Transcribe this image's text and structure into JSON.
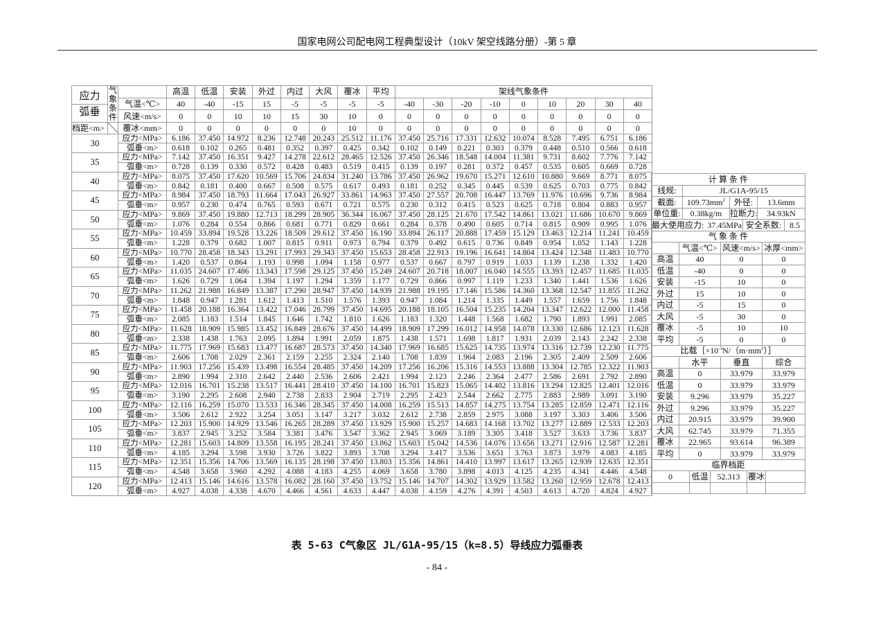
{
  "header": {
    "title": "国家电网公司配电网工程典型设计（10kV 架空线路分册）-第 5 章"
  },
  "caption": "表 5-63 C气象区 JL/G1A-95/15（k=8.5）导线应力弧垂表",
  "page_number": "- 84 -",
  "main_table": {
    "corner": {
      "stress_label": "应力",
      "sag_label": "弧垂",
      "meteo_label": "气象条件",
      "span_label": "档距<m>"
    },
    "row_labels": {
      "temp": "气温<℃>",
      "wind": "风速<m/s>",
      "ice": "覆冰<mm>",
      "stress": "应力<MPa>",
      "sag": "弧垂<m>"
    },
    "conditions": [
      "高温",
      "低温",
      "安装",
      "外过",
      "内过",
      "大风",
      "覆冰",
      "平均"
    ],
    "erection_title": "架线气象条件",
    "temps": [
      "40",
      "-40",
      "-15",
      "15",
      "-5",
      "-5",
      "-5",
      "-5",
      "-40",
      "-30",
      "-20",
      "-10",
      "0",
      "10",
      "20",
      "30",
      "40"
    ],
    "winds": [
      "0",
      "0",
      "10",
      "10",
      "15",
      "30",
      "10",
      "0",
      "0",
      "0",
      "0",
      "0",
      "0",
      "0",
      "0",
      "0",
      "0"
    ],
    "ices": [
      "0",
      "0",
      "0",
      "0",
      "0",
      "0",
      "10",
      "0",
      "0",
      "0",
      "0",
      "0",
      "0",
      "0",
      "0",
      "0",
      "0"
    ],
    "spans": [
      {
        "span": "30",
        "stress": [
          "6.186",
          "37.450",
          "14.972",
          "8.236",
          "12.748",
          "20.243",
          "25.512",
          "11.176",
          "37.450",
          "25.716",
          "17.331",
          "12.632",
          "10.074",
          "8.528",
          "7.495",
          "6.751",
          "6.186"
        ],
        "sag": [
          "0.618",
          "0.102",
          "0.265",
          "0.481",
          "0.352",
          "0.397",
          "0.425",
          "0.342",
          "0.102",
          "0.149",
          "0.221",
          "0.303",
          "0.379",
          "0.448",
          "0.510",
          "0.566",
          "0.618"
        ]
      },
      {
        "span": "35",
        "stress": [
          "7.142",
          "37.450",
          "16.351",
          "9.427",
          "14.278",
          "22.612",
          "28.465",
          "12.526",
          "37.450",
          "26.346",
          "18.548",
          "14.004",
          "11.381",
          "9.731",
          "8.602",
          "7.776",
          "7.142"
        ],
        "sag": [
          "0.728",
          "0.139",
          "0.330",
          "0.572",
          "0.428",
          "0.483",
          "0.519",
          "0.415",
          "0.139",
          "0.197",
          "0.281",
          "0.372",
          "0.457",
          "0.535",
          "0.605",
          "0.669",
          "0.728"
        ]
      },
      {
        "span": "40",
        "stress": [
          "8.075",
          "37.450",
          "17.620",
          "10.569",
          "15.706",
          "24.834",
          "31.240",
          "13.786",
          "37.450",
          "26.962",
          "19.670",
          "15.271",
          "12.610",
          "10.880",
          "9.669",
          "8.771",
          "8.075"
        ],
        "sag": [
          "0.842",
          "0.181",
          "0.400",
          "0.667",
          "0.508",
          "0.575",
          "0.617",
          "0.493",
          "0.181",
          "0.252",
          "0.345",
          "0.445",
          "0.539",
          "0.625",
          "0.703",
          "0.775",
          "0.842"
        ]
      },
      {
        "span": "45",
        "stress": [
          "8.984",
          "37.450",
          "18.793",
          "11.664",
          "17.043",
          "26.927",
          "33.861",
          "14.963",
          "37.450",
          "27.557",
          "20.708",
          "16.447",
          "13.769",
          "11.976",
          "10.696",
          "9.736",
          "8.984"
        ],
        "sag": [
          "0.957",
          "0.230",
          "0.474",
          "0.765",
          "0.593",
          "0.671",
          "0.721",
          "0.575",
          "0.230",
          "0.312",
          "0.415",
          "0.523",
          "0.625",
          "0.718",
          "0.804",
          "0.883",
          "0.957"
        ]
      },
      {
        "span": "50",
        "stress": [
          "9.869",
          "37.450",
          "19.880",
          "12.713",
          "18.299",
          "28.905",
          "36.344",
          "16.067",
          "37.450",
          "28.125",
          "21.670",
          "17.542",
          "14.861",
          "13.021",
          "11.686",
          "10.670",
          "9.869"
        ],
        "sag": [
          "1.076",
          "0.284",
          "0.554",
          "0.866",
          "0.681",
          "0.771",
          "0.829",
          "0.661",
          "0.284",
          "0.378",
          "0.490",
          "0.605",
          "0.714",
          "0.815",
          "0.909",
          "0.995",
          "1.076"
        ]
      },
      {
        "span": "55",
        "stress": [
          "10.459",
          "33.894",
          "19.528",
          "13.226",
          "18.509",
          "29.612",
          "37.450",
          "16.190",
          "33.894",
          "26.117",
          "20.888",
          "17.459",
          "15.129",
          "13.463",
          "12.214",
          "11.241",
          "10.459"
        ],
        "sag": [
          "1.228",
          "0.379",
          "0.682",
          "1.007",
          "0.815",
          "0.911",
          "0.973",
          "0.794",
          "0.379",
          "0.492",
          "0.615",
          "0.736",
          "0.849",
          "0.954",
          "1.052",
          "1.143",
          "1.228"
        ]
      },
      {
        "span": "60",
        "stress": [
          "10.770",
          "28.458",
          "18.343",
          "13.291",
          "17.993",
          "29.343",
          "37.450",
          "15.653",
          "28.458",
          "22.913",
          "19.196",
          "16.641",
          "14.804",
          "13.424",
          "12.348",
          "11.483",
          "10.770"
        ],
        "sag": [
          "1.420",
          "0.537",
          "0.864",
          "1.193",
          "0.998",
          "1.094",
          "1.158",
          "0.977",
          "0.537",
          "0.667",
          "0.797",
          "0.919",
          "1.033",
          "1.139",
          "1.238",
          "1.332",
          "1.420"
        ]
      },
      {
        "span": "65",
        "stress": [
          "11.035",
          "24.607",
          "17.486",
          "13.343",
          "17.598",
          "29.125",
          "37.450",
          "15.249",
          "24.607",
          "20.718",
          "18.007",
          "16.040",
          "14.555",
          "13.393",
          "12.457",
          "11.685",
          "11.035"
        ],
        "sag": [
          "1.626",
          "0.729",
          "1.064",
          "1.394",
          "1.197",
          "1.294",
          "1.359",
          "1.177",
          "0.729",
          "0.866",
          "0.997",
          "1.119",
          "1.233",
          "1.340",
          "1.441",
          "1.536",
          "1.626"
        ]
      },
      {
        "span": "70",
        "stress": [
          "11.262",
          "21.988",
          "16.849",
          "13.387",
          "17.290",
          "28.947",
          "37.450",
          "14.939",
          "21.988",
          "19.195",
          "17.146",
          "15.586",
          "14.360",
          "13.368",
          "12.547",
          "11.855",
          "11.262"
        ],
        "sag": [
          "1.848",
          "0.947",
          "1.281",
          "1.612",
          "1.413",
          "1.510",
          "1.576",
          "1.393",
          "0.947",
          "1.084",
          "1.214",
          "1.335",
          "1.449",
          "1.557",
          "1.659",
          "1.756",
          "1.848"
        ]
      },
      {
        "span": "75",
        "stress": [
          "11.458",
          "20.188",
          "16.364",
          "13.422",
          "17.046",
          "28.799",
          "37.450",
          "14.695",
          "20.188",
          "18.105",
          "16.504",
          "15.235",
          "14.204",
          "13.347",
          "12.622",
          "12.000",
          "11.458"
        ],
        "sag": [
          "2.085",
          "1.183",
          "1.514",
          "1.845",
          "1.646",
          "1.742",
          "1.810",
          "1.626",
          "1.183",
          "1.320",
          "1.448",
          "1.568",
          "1.682",
          "1.790",
          "1.893",
          "1.991",
          "2.085"
        ]
      },
      {
        "span": "80",
        "stress": [
          "11.628",
          "18.909",
          "15.985",
          "13.452",
          "16.849",
          "28.676",
          "37.450",
          "14.499",
          "18.909",
          "17.299",
          "16.012",
          "14.958",
          "14.078",
          "13.330",
          "12.686",
          "12.123",
          "11.628"
        ],
        "sag": [
          "2.338",
          "1.438",
          "1.763",
          "2.095",
          "1.894",
          "1.991",
          "2.059",
          "1.875",
          "1.438",
          "1.571",
          "1.698",
          "1.817",
          "1.931",
          "2.039",
          "2.143",
          "2.242",
          "2.338"
        ]
      },
      {
        "span": "85",
        "stress": [
          "11.775",
          "17.969",
          "15.683",
          "13.477",
          "16.687",
          "28.573",
          "37.450",
          "14.340",
          "17.969",
          "16.685",
          "15.625",
          "14.735",
          "13.974",
          "13.316",
          "12.739",
          "12.230",
          "11.775"
        ],
        "sag": [
          "2.606",
          "1.708",
          "2.029",
          "2.361",
          "2.159",
          "2.255",
          "2.324",
          "2.140",
          "1.708",
          "1.839",
          "1.964",
          "2.083",
          "2.196",
          "2.305",
          "2.409",
          "2.509",
          "2.606"
        ]
      },
      {
        "span": "90",
        "stress": [
          "11.903",
          "17.256",
          "15.439",
          "13.498",
          "16.554",
          "28.485",
          "37.450",
          "14.209",
          "17.256",
          "16.206",
          "15.316",
          "14.553",
          "13.888",
          "13.304",
          "12.785",
          "12.322",
          "11.903"
        ],
        "sag": [
          "2.890",
          "1.994",
          "2.310",
          "2.642",
          "2.440",
          "2.536",
          "2.606",
          "2.421",
          "1.994",
          "2.123",
          "2.246",
          "2.364",
          "2.477",
          "2.586",
          "2.691",
          "2.792",
          "2.890"
        ]
      },
      {
        "span": "95",
        "stress": [
          "12.016",
          "16.701",
          "15.238",
          "13.517",
          "16.441",
          "28.410",
          "37.450",
          "14.100",
          "16.701",
          "15.823",
          "15.065",
          "14.402",
          "13.816",
          "13.294",
          "12.825",
          "12.401",
          "12.016"
        ],
        "sag": [
          "3.190",
          "2.295",
          "2.608",
          "2.940",
          "2.738",
          "2.833",
          "2.904",
          "2.719",
          "2.295",
          "2.423",
          "2.544",
          "2.662",
          "2.775",
          "2.883",
          "2.989",
          "3.091",
          "3.190"
        ]
      },
      {
        "span": "100",
        "stress": [
          "12.116",
          "16.259",
          "15.070",
          "13.533",
          "16.346",
          "28.345",
          "37.450",
          "14.008",
          "16.259",
          "15.513",
          "14.857",
          "14.275",
          "13.754",
          "13.285",
          "12.859",
          "12.471",
          "12.116"
        ],
        "sag": [
          "3.506",
          "2.612",
          "2.922",
          "3.254",
          "3.051",
          "3.147",
          "3.217",
          "3.032",
          "2.612",
          "2.738",
          "2.859",
          "2.975",
          "3.088",
          "3.197",
          "3.303",
          "3.406",
          "3.506"
        ]
      },
      {
        "span": "105",
        "stress": [
          "12.203",
          "15.900",
          "14.929",
          "13.546",
          "16.265",
          "28.289",
          "37.450",
          "13.929",
          "15.900",
          "15.257",
          "14.683",
          "14.168",
          "13.702",
          "13.277",
          "12.889",
          "12.533",
          "12.203"
        ],
        "sag": [
          "3.837",
          "2.945",
          "3.252",
          "3.584",
          "3.381",
          "3.476",
          "3.547",
          "3.362",
          "2.945",
          "3.069",
          "3.189",
          "3.305",
          "3.418",
          "3.527",
          "3.633",
          "3.736",
          "3.837"
        ]
      },
      {
        "span": "110",
        "stress": [
          "12.281",
          "15.603",
          "14.809",
          "13.558",
          "16.195",
          "28.241",
          "37.450",
          "13.862",
          "15.603",
          "15.042",
          "14.536",
          "14.076",
          "13.656",
          "13.271",
          "12.916",
          "12.587",
          "12.281"
        ],
        "sag": [
          "4.185",
          "3.294",
          "3.598",
          "3.930",
          "3.726",
          "3.822",
          "3.893",
          "3.708",
          "3.294",
          "3.417",
          "3.536",
          "3.651",
          "3.763",
          "3.873",
          "3.979",
          "4.083",
          "4.185"
        ]
      },
      {
        "span": "115",
        "stress": [
          "12.351",
          "15.356",
          "14.706",
          "13.569",
          "16.135",
          "28.198",
          "37.450",
          "13.803",
          "15.356",
          "14.861",
          "14.410",
          "13.997",
          "13.617",
          "13.265",
          "12.939",
          "12.635",
          "12.351"
        ],
        "sag": [
          "4.548",
          "3.658",
          "3.960",
          "4.292",
          "4.088",
          "4.183",
          "4.255",
          "4.069",
          "3.658",
          "3.780",
          "3.898",
          "4.013",
          "4.125",
          "4.235",
          "4.341",
          "4.446",
          "4.548"
        ]
      },
      {
        "span": "120",
        "stress": [
          "12.413",
          "15.146",
          "14.616",
          "13.578",
          "16.082",
          "28.160",
          "37.450",
          "13.752",
          "15.146",
          "14.707",
          "14.302",
          "13.929",
          "13.582",
          "13.260",
          "12.959",
          "12.678",
          "12.413"
        ],
        "sag": [
          "4.927",
          "4.038",
          "4.338",
          "4.670",
          "4.466",
          "4.561",
          "4.633",
          "4.447",
          "4.038",
          "4.159",
          "4.276",
          "4.391",
          "4.503",
          "4.613",
          "4.720",
          "4.824",
          "4.927"
        ]
      }
    ]
  },
  "side_panel": {
    "calc_title": "计 算 条 件",
    "conductor_label": "线规:",
    "conductor": "JL/G1A-95/15",
    "section_label": "截面:",
    "section": "109.73mm",
    "section_sup": "2",
    "diameter_label": "外径:",
    "diameter": "13.6mm",
    "unit_weight_label": "单位重:",
    "unit_weight": "0.38kg/m",
    "breaking_label": "拉断力:",
    "breaking": "34.93kN",
    "max_stress_label": "最大使用应力:",
    "max_stress": "37.45MPa",
    "safety_label": "安全系数:",
    "safety": "8.5",
    "meteo_title": "气 象 条 件",
    "meteo_headers": [
      "气温<℃>",
      "风速<m/s>",
      "冰厚<mm>"
    ],
    "meteo_rows": [
      {
        "name": "高温",
        "t": "40",
        "v": "0",
        "i": "0"
      },
      {
        "name": "低温",
        "t": "-40",
        "v": "0",
        "i": "0"
      },
      {
        "name": "安装",
        "t": "-15",
        "v": "10",
        "i": "0"
      },
      {
        "name": "外过",
        "t": "15",
        "v": "10",
        "i": "0"
      },
      {
        "name": "内过",
        "t": "-5",
        "v": "15",
        "i": "0"
      },
      {
        "name": "大风",
        "t": "-5",
        "v": "30",
        "i": "0"
      },
      {
        "name": "覆冰",
        "t": "-5",
        "v": "10",
        "i": "10"
      },
      {
        "name": "平均",
        "t": "-5",
        "v": "0",
        "i": "0"
      }
    ],
    "load_title_a": "比载［×10",
    "load_title_sup1": "-3",
    "load_title_b": "N/（m·mm",
    "load_title_sup2": "2",
    "load_title_c": "）］",
    "load_headers": [
      "水平",
      "垂直",
      "综合"
    ],
    "load_rows": [
      {
        "name": "高温",
        "h": "0",
        "v": "33.979",
        "c": "33.979"
      },
      {
        "name": "低温",
        "h": "0",
        "v": "33.979",
        "c": "33.979"
      },
      {
        "name": "安装",
        "h": "9.296",
        "v": "33.979",
        "c": "35.227"
      },
      {
        "name": "外过",
        "h": "9.296",
        "v": "33.979",
        "c": "35.227"
      },
      {
        "name": "内过",
        "h": "20.915",
        "v": "33.979",
        "c": "39.900"
      },
      {
        "name": "大风",
        "h": "62.745",
        "v": "33.979",
        "c": "71.355"
      },
      {
        "name": "覆冰",
        "h": "22.965",
        "v": "93.614",
        "c": "96.389"
      },
      {
        "name": "平均",
        "h": "0",
        "v": "33.979",
        "c": "33.979"
      }
    ],
    "critical_title": "临界档距",
    "critical": [
      "0",
      "低温",
      "52.313",
      "覆冰",
      ""
    ]
  }
}
